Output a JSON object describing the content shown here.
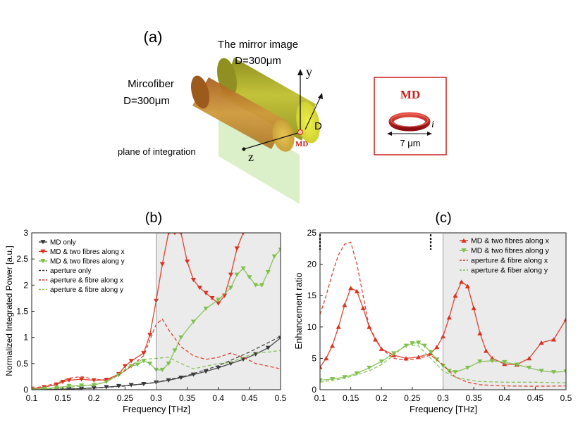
{
  "panel_a": {
    "label": "(a)",
    "mirror_title": "The mirror image",
    "mirror_diameter": "D=300μm",
    "fiber_title": "Mircofiber",
    "fiber_diameter": "D=300μm",
    "plane_label": "plane of integration",
    "axis_y": "y",
    "axis_z": "z",
    "diameter_label": "D",
    "md_small_label": "MD",
    "inset_title": "MD",
    "inset_current": "i",
    "inset_size": "7 μm",
    "colors": {
      "mirror": "#b5b52a",
      "fiber": "#c1882e",
      "plane": "#cfeab5",
      "md_red": "#c8201d"
    }
  },
  "chart_data": [
    {
      "label": "(b)",
      "type": "line",
      "xlabel": "Frequency  [THz]",
      "ylabel": "Normalized Integrated Power [a.u.]",
      "xlim": [
        0.1,
        0.5
      ],
      "ylim": [
        0,
        3
      ],
      "xticks": [
        "0.1",
        "0.15",
        "0.2",
        "0.25",
        "0.3",
        "0.35",
        "0.4",
        "0.45",
        "0.5"
      ],
      "yticks": [
        "0",
        "0.5",
        "1",
        "1.5",
        "2",
        "2.5",
        "3"
      ],
      "shaded_region": [
        0.3,
        0.5
      ],
      "legend_position": "top-left",
      "series": [
        {
          "name": "MD only",
          "style": "solid",
          "marker": "triangle-down",
          "color": "#3a3a3a",
          "x": [
            0.1,
            0.12,
            0.14,
            0.16,
            0.18,
            0.2,
            0.22,
            0.24,
            0.26,
            0.28,
            0.3,
            0.32,
            0.34,
            0.36,
            0.38,
            0.4,
            0.42,
            0.44,
            0.46,
            0.48,
            0.5
          ],
          "y": [
            0.002,
            0.004,
            0.008,
            0.016,
            0.02,
            0.035,
            0.05,
            0.07,
            0.09,
            0.11,
            0.14,
            0.18,
            0.23,
            0.29,
            0.35,
            0.42,
            0.5,
            0.58,
            0.68,
            0.8,
            0.99
          ]
        },
        {
          "name": "MD & two fibres along x",
          "style": "solid",
          "marker": "triangle-down",
          "color": "#d9321f",
          "x": [
            0.1,
            0.12,
            0.14,
            0.15,
            0.16,
            0.18,
            0.2,
            0.22,
            0.24,
            0.25,
            0.26,
            0.28,
            0.29,
            0.3,
            0.31,
            0.32,
            0.33,
            0.34,
            0.35,
            0.36,
            0.37,
            0.38,
            0.39,
            0.4,
            0.41,
            0.42,
            0.43,
            0.44
          ],
          "y": [
            0.02,
            0.05,
            0.1,
            0.15,
            0.18,
            0.2,
            0.18,
            0.19,
            0.3,
            0.45,
            0.55,
            0.7,
            1.05,
            1.7,
            2.4,
            3.0,
            3.0,
            3.0,
            2.45,
            2.1,
            1.95,
            1.85,
            1.75,
            1.65,
            1.8,
            2.2,
            2.7,
            3.0
          ]
        },
        {
          "name": "MD & two fibres along y",
          "style": "solid",
          "marker": "triangle-down",
          "color": "#7fc04c",
          "x": [
            0.1,
            0.12,
            0.14,
            0.16,
            0.18,
            0.2,
            0.22,
            0.24,
            0.26,
            0.27,
            0.28,
            0.29,
            0.3,
            0.31,
            0.32,
            0.33,
            0.34,
            0.36,
            0.38,
            0.4,
            0.42,
            0.43,
            0.44,
            0.45,
            0.46,
            0.47,
            0.48,
            0.49,
            0.5
          ],
          "y": [
            0.01,
            0.02,
            0.04,
            0.07,
            0.08,
            0.09,
            0.15,
            0.28,
            0.45,
            0.48,
            0.55,
            0.5,
            0.38,
            0.38,
            0.5,
            0.75,
            1.0,
            1.3,
            1.55,
            1.72,
            1.95,
            2.2,
            2.32,
            2.15,
            2.0,
            2.0,
            2.25,
            2.55,
            2.68
          ]
        },
        {
          "name": "aperture only",
          "style": "dashed",
          "marker": "none",
          "color": "#3a3a3a",
          "x": [
            0.1,
            0.15,
            0.2,
            0.25,
            0.3,
            0.35,
            0.4,
            0.45,
            0.5
          ],
          "y": [
            0.0,
            0.01,
            0.03,
            0.07,
            0.14,
            0.27,
            0.46,
            0.72,
            1.02
          ]
        },
        {
          "name": "aperture & fibre along x",
          "style": "dashed",
          "marker": "none",
          "color": "#d9321f",
          "x": [
            0.1,
            0.14,
            0.16,
            0.18,
            0.2,
            0.22,
            0.24,
            0.26,
            0.28,
            0.29,
            0.3,
            0.31,
            0.32,
            0.34,
            0.36,
            0.38,
            0.4,
            0.42,
            0.44,
            0.46,
            0.48,
            0.5
          ],
          "y": [
            0.02,
            0.12,
            0.22,
            0.25,
            0.2,
            0.18,
            0.28,
            0.45,
            0.65,
            0.95,
            1.25,
            1.35,
            1.15,
            0.82,
            0.65,
            0.58,
            0.62,
            0.7,
            0.62,
            0.5,
            0.45,
            0.4
          ]
        },
        {
          "name": "aperture & fibre along y",
          "style": "dashed",
          "marker": "none",
          "color": "#7fc04c",
          "x": [
            0.1,
            0.15,
            0.2,
            0.22,
            0.24,
            0.26,
            0.28,
            0.3,
            0.32,
            0.34,
            0.36,
            0.38,
            0.4,
            0.42,
            0.44,
            0.46,
            0.48,
            0.5
          ],
          "y": [
            0.01,
            0.03,
            0.1,
            0.15,
            0.3,
            0.48,
            0.58,
            0.6,
            0.62,
            0.5,
            0.4,
            0.45,
            0.5,
            0.52,
            0.62,
            0.7,
            0.72,
            0.75
          ]
        }
      ]
    },
    {
      "label": "(c)",
      "type": "line",
      "xlabel": "Frequency  [THz]",
      "ylabel": "Enhancement ratio",
      "xlim": [
        0.1,
        0.5
      ],
      "ylim": [
        0,
        25
      ],
      "xticks": [
        "0.1",
        "0.15",
        "0.2",
        "0.25",
        "0.3",
        "0.35",
        "0.4",
        "0.45",
        "0.5"
      ],
      "yticks": [
        "0",
        "5",
        "10",
        "15",
        "20",
        "25"
      ],
      "shaded_region": [
        0.3,
        0.5
      ],
      "markers_at": [
        0.1,
        0.28
      ],
      "legend_position": "top-right",
      "series": [
        {
          "name": "MD & two fibres along x",
          "style": "solid",
          "marker": "triangle-up",
          "color": "#d9321f",
          "x": [
            0.1,
            0.11,
            0.12,
            0.13,
            0.14,
            0.15,
            0.16,
            0.17,
            0.18,
            0.19,
            0.2,
            0.22,
            0.24,
            0.26,
            0.28,
            0.29,
            0.3,
            0.31,
            0.32,
            0.33,
            0.34,
            0.35,
            0.36,
            0.37,
            0.38,
            0.4,
            0.42,
            0.44,
            0.46,
            0.48,
            0.5
          ],
          "y": [
            3.6,
            5.0,
            7.0,
            10.0,
            13.5,
            16.2,
            15.7,
            13.0,
            10.0,
            8.0,
            6.5,
            5.5,
            5.0,
            5.2,
            5.8,
            6.8,
            8.5,
            11.5,
            15.0,
            17.2,
            16.5,
            13.0,
            9.0,
            6.2,
            5.0,
            4.1,
            4.0,
            5.0,
            7.5,
            8.0,
            11.2
          ]
        },
        {
          "name": "MD & two fibres along y",
          "style": "solid",
          "marker": "triangle-down",
          "color": "#7fc04c",
          "x": [
            0.1,
            0.12,
            0.14,
            0.16,
            0.18,
            0.2,
            0.22,
            0.24,
            0.25,
            0.26,
            0.27,
            0.28,
            0.29,
            0.3,
            0.31,
            0.32,
            0.34,
            0.36,
            0.38,
            0.4,
            0.42,
            0.44,
            0.46,
            0.48,
            0.5
          ],
          "y": [
            1.5,
            1.7,
            2.0,
            2.6,
            3.5,
            4.5,
            5.8,
            7.0,
            7.4,
            7.5,
            7.0,
            6.0,
            4.8,
            3.8,
            3.0,
            2.8,
            3.5,
            4.5,
            4.6,
            4.4,
            4.0,
            3.5,
            3.0,
            2.8,
            2.9
          ]
        },
        {
          "name": "aperture & fibre along x",
          "style": "dashed",
          "marker": "none",
          "color": "#d9321f",
          "x": [
            0.1,
            0.11,
            0.12,
            0.13,
            0.14,
            0.15,
            0.16,
            0.17,
            0.18,
            0.2,
            0.22,
            0.24,
            0.26,
            0.28,
            0.3,
            0.32,
            0.34,
            0.36,
            0.4,
            0.45,
            0.5
          ],
          "y": [
            12.0,
            15.0,
            18.5,
            21.5,
            23.2,
            23.5,
            20.0,
            15.0,
            10.0,
            6.5,
            5.0,
            4.7,
            5.0,
            5.5,
            4.0,
            2.0,
            1.2,
            0.8,
            0.6,
            0.55,
            0.6
          ]
        },
        {
          "name": "aperture & fiber along y",
          "style": "dashed",
          "marker": "none",
          "color": "#7fc04c",
          "x": [
            0.1,
            0.14,
            0.18,
            0.2,
            0.22,
            0.24,
            0.26,
            0.28,
            0.3,
            0.32,
            0.34,
            0.36,
            0.4,
            0.45,
            0.5
          ],
          "y": [
            1.2,
            1.8,
            3.0,
            4.0,
            5.5,
            7.2,
            7.0,
            5.0,
            3.0,
            2.0,
            1.6,
            1.3,
            1.2,
            1.2,
            1.1
          ]
        }
      ]
    }
  ]
}
